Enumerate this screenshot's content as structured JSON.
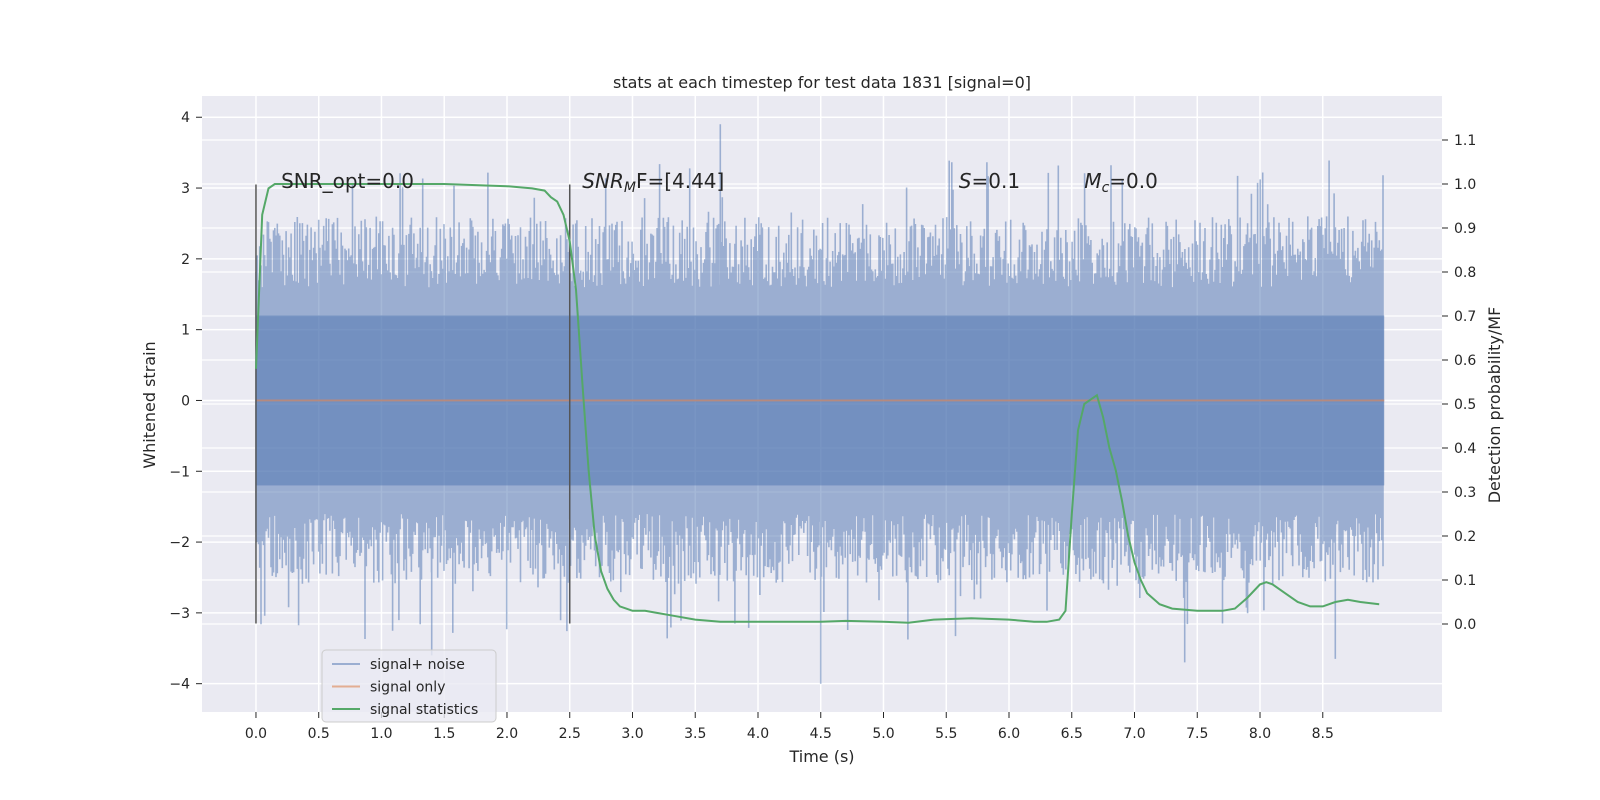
{
  "chart_data": {
    "type": "line",
    "title": "stats at each timestep for test data 1831 [signal=0]",
    "xlabel": "Time (s)",
    "ylabel": "Whitened strain",
    "y2label": "Detection probability/MF",
    "xlim": [
      -0.43,
      9.45
    ],
    "ylim": [
      -4.4,
      4.3
    ],
    "y2lim": [
      -0.2,
      1.2
    ],
    "x_ticks": [
      0.0,
      0.5,
      1.0,
      1.5,
      2.0,
      2.5,
      3.0,
      3.5,
      4.0,
      4.5,
      5.0,
      5.5,
      6.0,
      6.5,
      7.0,
      7.5,
      8.0,
      8.5
    ],
    "x_tick_labels": [
      "0.0",
      "0.5",
      "1.0",
      "1.5",
      "2.0",
      "2.5",
      "3.0",
      "3.5",
      "4.0",
      "4.5",
      "5.0",
      "5.5",
      "6.0",
      "6.5",
      "7.0",
      "7.5",
      "8.0",
      "8.5"
    ],
    "y_ticks": [
      4,
      3,
      2,
      1,
      0,
      -1,
      -2,
      -3,
      -4
    ],
    "y_tick_labels": [
      "4",
      "3",
      "2",
      "1",
      "0",
      "−1",
      "−2",
      "−3",
      "−4"
    ],
    "y2_ticks": [
      1.1,
      1.0,
      0.9,
      0.8,
      0.7,
      0.6,
      0.5,
      0.4,
      0.3,
      0.2,
      0.1,
      0.0
    ],
    "y2_tick_labels": [
      "1.1",
      "1.0",
      "0.9",
      "0.8",
      "0.7",
      "0.6",
      "0.5",
      "0.4",
      "0.3",
      "0.2",
      "0.1",
      "0.0"
    ],
    "grid": true,
    "legend_position": "lower-left",
    "annotations": [
      {
        "text": "SNR_opt=0.0",
        "x": 0.2,
        "y": 3.0
      },
      {
        "text": "SNR",
        "sub": "M",
        "suffix": "F=[4.44]",
        "italic": true,
        "x": 2.6,
        "y": 3.0
      },
      {
        "text": "S",
        "suffix": "=0.1",
        "italic": true,
        "x": 5.6,
        "y": 3.0
      },
      {
        "text": "M",
        "sub": "c",
        "suffix": "=0.0",
        "italic": true,
        "x": 6.6,
        "y": 3.0
      }
    ],
    "markers": [
      {
        "x": 0.0,
        "y_range": [
          -3.15,
          3.05
        ]
      },
      {
        "x": 2.5,
        "y_range": [
          -3.15,
          3.05
        ]
      }
    ],
    "series": [
      {
        "name": "signal+ noise",
        "axis": "left",
        "color": "#4c72b0",
        "alpha": 0.5,
        "x_range": [
          0.0,
          8.99
        ],
        "sample_count": 900,
        "envelope_min": -4.0,
        "envelope_max": 3.9
      },
      {
        "name": "signal only",
        "axis": "left",
        "color": "#dd8452",
        "x": [
          0.0,
          8.99
        ],
        "values": [
          0.0,
          0.0
        ]
      },
      {
        "name": "signal statistics",
        "axis": "right",
        "color": "#55a868",
        "x": [
          0.0,
          0.05,
          0.1,
          0.15,
          0.2,
          0.3,
          0.5,
          0.8,
          1.0,
          1.5,
          2.0,
          2.2,
          2.3,
          2.35,
          2.4,
          2.45,
          2.5,
          2.55,
          2.6,
          2.65,
          2.7,
          2.75,
          2.8,
          2.85,
          2.9,
          2.95,
          3.0,
          3.1,
          3.2,
          3.3,
          3.5,
          3.7,
          4.0,
          4.3,
          4.5,
          4.7,
          5.0,
          5.2,
          5.4,
          5.7,
          6.0,
          6.2,
          6.3,
          6.4,
          6.45,
          6.5,
          6.55,
          6.6,
          6.65,
          6.7,
          6.75,
          6.8,
          6.85,
          6.9,
          6.95,
          7.0,
          7.05,
          7.1,
          7.2,
          7.3,
          7.5,
          7.7,
          7.8,
          7.9,
          8.0,
          8.05,
          8.1,
          8.2,
          8.3,
          8.4,
          8.5,
          8.6,
          8.7,
          8.8,
          8.95
        ],
        "values": [
          0.58,
          0.93,
          0.99,
          1.0,
          1.0,
          1.0,
          1.0,
          1.0,
          1.0,
          1.0,
          0.995,
          0.99,
          0.985,
          0.97,
          0.96,
          0.93,
          0.87,
          0.76,
          0.55,
          0.35,
          0.2,
          0.12,
          0.08,
          0.055,
          0.04,
          0.035,
          0.03,
          0.03,
          0.025,
          0.02,
          0.01,
          0.005,
          0.005,
          0.005,
          0.005,
          0.007,
          0.005,
          0.003,
          0.01,
          0.013,
          0.01,
          0.005,
          0.005,
          0.01,
          0.03,
          0.25,
          0.44,
          0.5,
          0.51,
          0.52,
          0.47,
          0.4,
          0.35,
          0.28,
          0.2,
          0.14,
          0.1,
          0.07,
          0.045,
          0.035,
          0.03,
          0.03,
          0.035,
          0.06,
          0.09,
          0.095,
          0.09,
          0.07,
          0.05,
          0.04,
          0.04,
          0.05,
          0.055,
          0.05,
          0.045
        ]
      }
    ]
  }
}
